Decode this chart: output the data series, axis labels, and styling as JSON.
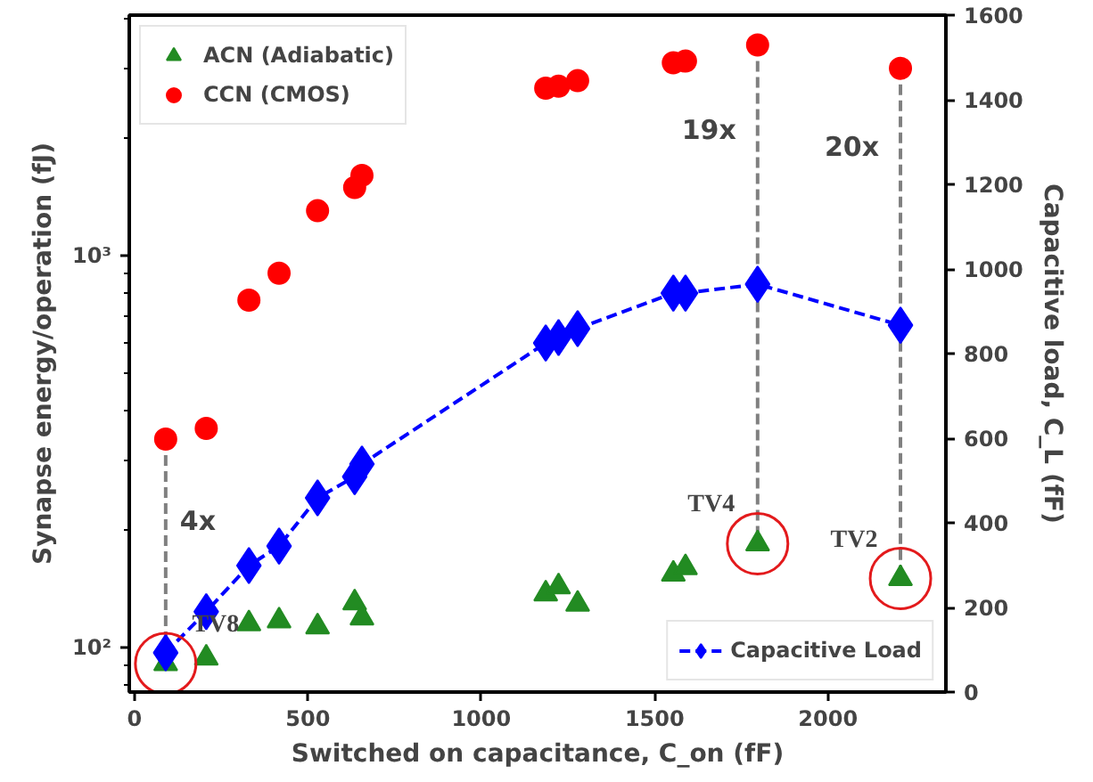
{
  "chart_data": {
    "type": "scatter",
    "xlabel": "Switched on capacitance, C_on (fF)",
    "ylabel": "Synapse energy/operation (fJ)",
    "y2label": "Capacitive load, C_L (fF)",
    "log": "y",
    "grid": false,
    "legend": "top left",
    "xlim": [
      -15,
      2340
    ],
    "xticks": [
      0,
      500,
      1000,
      1500,
      2000
    ],
    "ylim": [
      77,
      4100
    ],
    "yticks": [
      {
        "value": 100,
        "label": "10²"
      },
      {
        "value": 1000,
        "label": "10³"
      }
    ],
    "y2lim": [
      0,
      1600
    ],
    "y2ticks": [
      0,
      200,
      400,
      600,
      800,
      1000,
      1200,
      1400,
      1600
    ],
    "series": [
      {
        "type": "line",
        "color": "#808080",
        "line_style": "dashed",
        "x": [
          90,
          90
        ],
        "values": [
          340,
          106
        ]
      },
      {
        "type": "line",
        "color": "#808080",
        "line_style": "dashed",
        "x": [
          1797,
          1797
        ],
        "values": [
          3440,
          184
        ]
      },
      {
        "type": "line",
        "color": "#808080",
        "line_style": "dashed",
        "x": [
          2209,
          2209
        ],
        "values": [
          3000,
          150
        ]
      },
      {
        "name": "ACN (Adiabatic)",
        "marker": "triangle",
        "color": "#228b22",
        "x": [
          90,
          207,
          330,
          417,
          528,
          635,
          656,
          1186,
          1223,
          1278,
          1554,
          1589,
          1797,
          2209
        ],
        "values": [
          91,
          94,
          115,
          117,
          113,
          130,
          119,
          137,
          143,
          129,
          154,
          160,
          184,
          150
        ]
      },
      {
        "name": "CCN (CMOS)",
        "marker": "circle",
        "color": "#ff0000",
        "x": [
          90,
          207,
          330,
          417,
          528,
          635,
          656,
          1186,
          1223,
          1278,
          1554,
          1589,
          1797,
          2209
        ],
        "values": [
          340,
          362,
          769,
          901,
          1300,
          1490,
          1600,
          2670,
          2700,
          2790,
          3100,
          3130,
          3440,
          3000
        ]
      },
      {
        "name": "Capacitive Load",
        "type": "line",
        "axis": "y2",
        "marker": "diamond",
        "line_style": "dashed",
        "color": "#0000ff",
        "x": [
          90,
          207,
          330,
          417,
          528,
          635,
          656,
          1186,
          1223,
          1278,
          1554,
          1589,
          1797,
          2209
        ],
        "values": [
          93,
          190,
          299,
          345,
          459,
          509,
          539,
          825,
          838,
          859,
          943,
          943,
          964,
          867
        ]
      }
    ],
    "annotations": [
      {
        "text": "4x",
        "x": 90,
        "y": 210
      },
      {
        "text": "19x",
        "x": 1797,
        "y": 2090
      },
      {
        "text": "20x",
        "x": 2209,
        "y": 1890
      },
      {
        "text": "TV8",
        "x": 90,
        "y": 91
      },
      {
        "text": "TV4",
        "x": 1797,
        "y": 184
      },
      {
        "text": "TV2",
        "x": 2209,
        "y": 150
      }
    ]
  }
}
